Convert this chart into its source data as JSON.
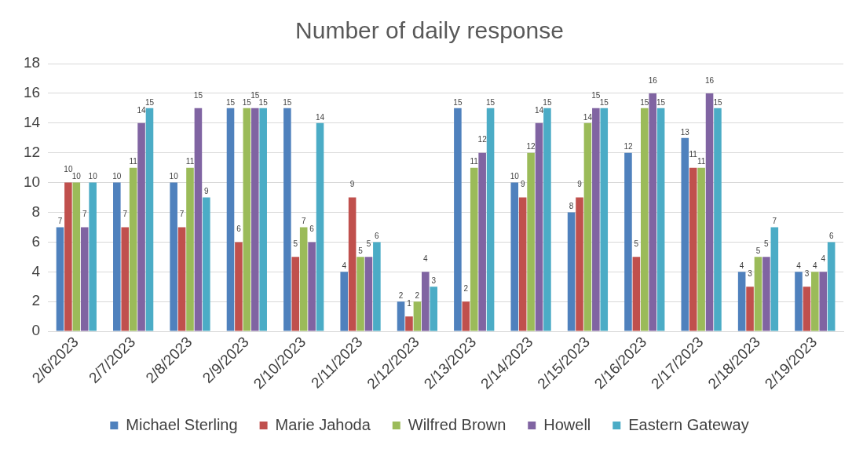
{
  "chart_data": {
    "type": "bar",
    "title": "Number of daily response",
    "categories": [
      "2/6/2023",
      "2/7/2023",
      "2/8/2023",
      "2/9/2023",
      "2/10/2023",
      "2/11/2023",
      "2/12/2023",
      "2/13/2023",
      "2/14/2023",
      "2/15/2023",
      "2/16/2023",
      "2/17/2023",
      "2/18/2023",
      "2/19/2023"
    ],
    "series": [
      {
        "name": "Michael Sterling",
        "color": "#4f81bd",
        "values": [
          7,
          10,
          10,
          15,
          15,
          4,
          2,
          15,
          10,
          8,
          12,
          13,
          4,
          4
        ]
      },
      {
        "name": "Marie Jahoda",
        "color": "#c0504d",
        "values": [
          10,
          7,
          7,
          6,
          5,
          9,
          1,
          2,
          9,
          9,
          5,
          11,
          3,
          3
        ]
      },
      {
        "name": "Wilfred Brown",
        "color": "#9bbb59",
        "values": [
          10,
          11,
          11,
          15,
          7,
          5,
          2,
          11,
          12,
          14,
          15,
          11,
          5,
          4
        ]
      },
      {
        "name": "Howell",
        "color": "#8064a2",
        "values": [
          7,
          14,
          15,
          15,
          6,
          5,
          4,
          12,
          14,
          15,
          16,
          16,
          5,
          4
        ]
      },
      {
        "name": "Eastern Gateway",
        "color": "#4bacc6",
        "values": [
          10,
          15,
          9,
          15,
          14,
          6,
          3,
          15,
          15,
          15,
          15,
          15,
          7,
          6
        ]
      }
    ],
    "ylim": [
      0,
      18
    ],
    "yticks": [
      0,
      2,
      4,
      6,
      8,
      10,
      12,
      14,
      16,
      18
    ],
    "grid": "y",
    "legend": "bottom",
    "data_labels": true
  }
}
